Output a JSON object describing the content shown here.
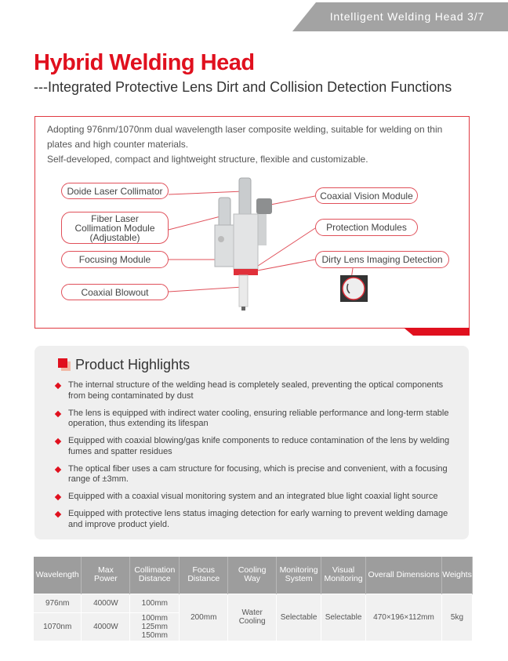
{
  "header": {
    "banner": "Intelligent Welding Head 3/7",
    "title": "Hybrid Welding Head",
    "subtitle": "---Integrated Protective Lens Dirt and Collision Detection Functions"
  },
  "intro": [
    "Adopting 976nm/1070nm dual wavelength laser composite welding, suitable for welding on thin plates and high counter materials.",
    "Self-developed, compact and lightweight structure, flexible and customizable."
  ],
  "labels": {
    "doide": "Doide Laser Collimator",
    "fiber1": "Fiber Laser",
    "fiber2": "Collimation Module",
    "fiber3": "(Adjustable)",
    "focusing": "Focusing Module",
    "blowout": "Coaxial Blowout",
    "vision": "Coaxial Vision Module",
    "protection": "Protection Modules",
    "dirty": "Dirty Lens Imaging Detection"
  },
  "highlights": {
    "title": "Product Highlights",
    "items": [
      "The internal structure of the welding head is completely sealed, preventing the optical components from being contaminated by dust",
      "The lens is equipped with indirect water cooling, ensuring reliable performance and long-term stable operation, thus extending its lifespan",
      "Equipped with coaxial blowing/gas knife components to reduce contamination of the lens by welding fumes and spatter residues",
      "The optical fiber uses a cam structure for focusing, which is precise and convenient, with a focusing range of ±3mm.",
      "Equipped with a coaxial visual monitoring system and an integrated blue light coaxial light source",
      "Equipped with protective lens status imaging detection for early warning to prevent welding damage and improve product yield."
    ]
  },
  "table": {
    "headers": [
      [
        "Wavelength"
      ],
      [
        "Max",
        "Power"
      ],
      [
        "Collimation",
        "Distance"
      ],
      [
        "Focus",
        "Distance"
      ],
      [
        "Cooling",
        "Way"
      ],
      [
        "Monitoring",
        "System"
      ],
      [
        "Visual",
        "Monitoring"
      ],
      [
        "Overall Dimensions"
      ],
      [
        "Weights"
      ]
    ],
    "row1": {
      "wavelength": "976nm",
      "power": "4000W",
      "collimation": "100mm"
    },
    "row2": {
      "wavelength": "1070nm",
      "power": "4000W",
      "collimation": [
        "100mm",
        "125mm",
        "150mm"
      ]
    },
    "shared": {
      "focus": "200mm",
      "cooling": [
        "Water",
        "Cooling"
      ],
      "monitoring": "Selectable",
      "visual": "Selectable",
      "dimensions": "470×196×112mm",
      "weight": "5kg"
    }
  },
  "colors": {
    "accent": "#e0101e",
    "banner": "#a3a3a3",
    "table_header": "#9d9d9d"
  }
}
